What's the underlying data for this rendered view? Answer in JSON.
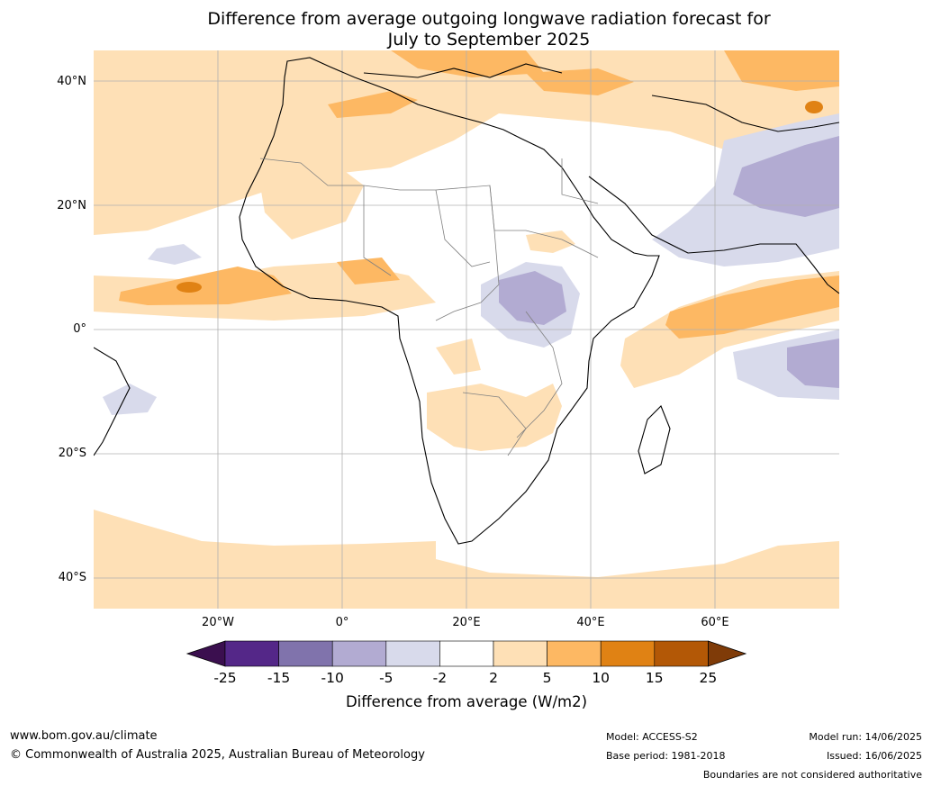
{
  "title_line1": "Difference from average outgoing longwave radiation forecast for",
  "title_line2": "July to September 2025",
  "lat_labels": [
    "40°N",
    "20°N",
    "0°",
    "20°S",
    "40°S"
  ],
  "lon_labels": [
    "20°W",
    "0°",
    "20°E",
    "40°E",
    "60°E"
  ],
  "colorbar": {
    "ticks": [
      "-25",
      "-15",
      "-10",
      "-5",
      "-2",
      "2",
      "5",
      "10",
      "15",
      "25"
    ],
    "label": "Difference from average (W/m2)",
    "colors": {
      "under": "#3b0f4f",
      "b1": "#542788",
      "b2": "#8073ac",
      "b3": "#b2abd2",
      "b4": "#d8daeb",
      "b5": "#ffffff",
      "b6": "#fee0b6",
      "b7": "#fdb863",
      "b8": "#e08214",
      "b9": "#b35806",
      "over": "#7f3b08"
    }
  },
  "footer": {
    "site": "www.bom.gov.au/climate",
    "copyright": "© Commonwealth of Australia 2025, Australian Bureau of Meteorology",
    "model": "Model: ACCESS-S2",
    "base_period": "Base period: 1981-2018",
    "model_run": "Model run: 14/06/2025",
    "issued": "Issued: 16/06/2025",
    "disclaimer": "Boundaries are not considered authoritative"
  }
}
